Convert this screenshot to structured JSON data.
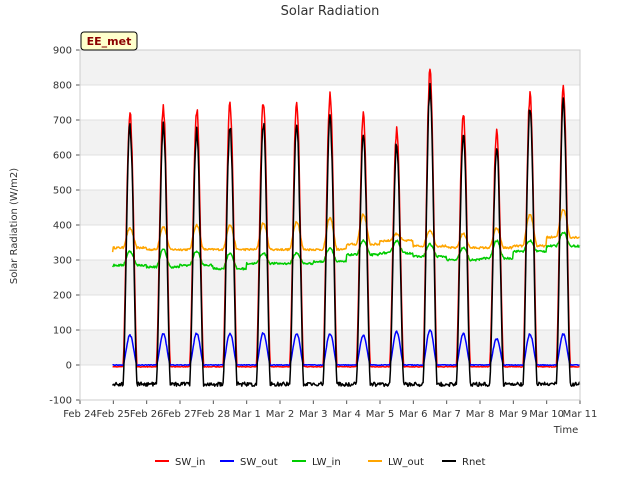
{
  "chart_data": {
    "type": "line",
    "title": "Solar Radiation",
    "xlabel": "Time",
    "ylabel": "Solar Radiation (W/m2)",
    "site_label": "EE_met",
    "ylim": [
      -100,
      900
    ],
    "yticks": [
      "-100",
      "0",
      "100",
      "200",
      "300",
      "400",
      "500",
      "600",
      "700",
      "800",
      "900"
    ],
    "xlim_days": [
      0,
      15
    ],
    "xticks": [
      "Feb 24",
      "Feb 25",
      "Feb 26",
      "Feb 27",
      "Feb 28",
      "Mar 1",
      "Mar 2",
      "Mar 3",
      "Mar 4",
      "Mar 5",
      "Mar 6",
      "Mar 7",
      "Mar 8",
      "Mar 9",
      "Mar 10",
      "Mar 11"
    ],
    "grid": true,
    "legend_position": "bottom",
    "days": [
      "Feb 24",
      "Feb 25",
      "Feb 26",
      "Feb 27",
      "Feb 28",
      "Mar 1",
      "Mar 2",
      "Mar 3",
      "Mar 4",
      "Mar 5",
      "Mar 6",
      "Mar 7",
      "Mar 8",
      "Mar 9",
      "Mar 10"
    ],
    "series": [
      {
        "name": "SW_in",
        "color": "#ff0000",
        "daily_peak": [
          0,
          720,
          740,
          730,
          750,
          755,
          745,
          770,
          710,
          670,
          840,
          720,
          660,
          770,
          795
        ],
        "night_value": -5
      },
      {
        "name": "SW_out",
        "color": "#0000ff",
        "daily_peak": [
          0,
          85,
          88,
          90,
          90,
          92,
          90,
          90,
          85,
          95,
          100,
          90,
          75,
          88,
          88
        ],
        "night_value": 0
      },
      {
        "name": "LW_in",
        "color": "#00cc00",
        "daily_min": [
          280,
          285,
          280,
          285,
          275,
          290,
          290,
          295,
          315,
          320,
          310,
          300,
          305,
          325,
          340
        ],
        "daily_max": [
          320,
          325,
          330,
          325,
          320,
          320,
          320,
          335,
          355,
          355,
          345,
          335,
          355,
          355,
          380
        ]
      },
      {
        "name": "LW_out",
        "color": "#ffa500",
        "daily_min": [
          325,
          335,
          330,
          330,
          330,
          330,
          330,
          330,
          345,
          355,
          340,
          335,
          335,
          340,
          365
        ],
        "daily_max": [
          330,
          390,
          395,
          400,
          400,
          405,
          410,
          420,
          430,
          375,
          385,
          375,
          390,
          430,
          445
        ]
      },
      {
        "name": "Rnet",
        "color": "#000000",
        "daily_peak": [
          0,
          680,
          690,
          670,
          680,
          690,
          685,
          705,
          660,
          630,
          790,
          660,
          620,
          730,
          750
        ],
        "night_value": -55
      }
    ]
  }
}
